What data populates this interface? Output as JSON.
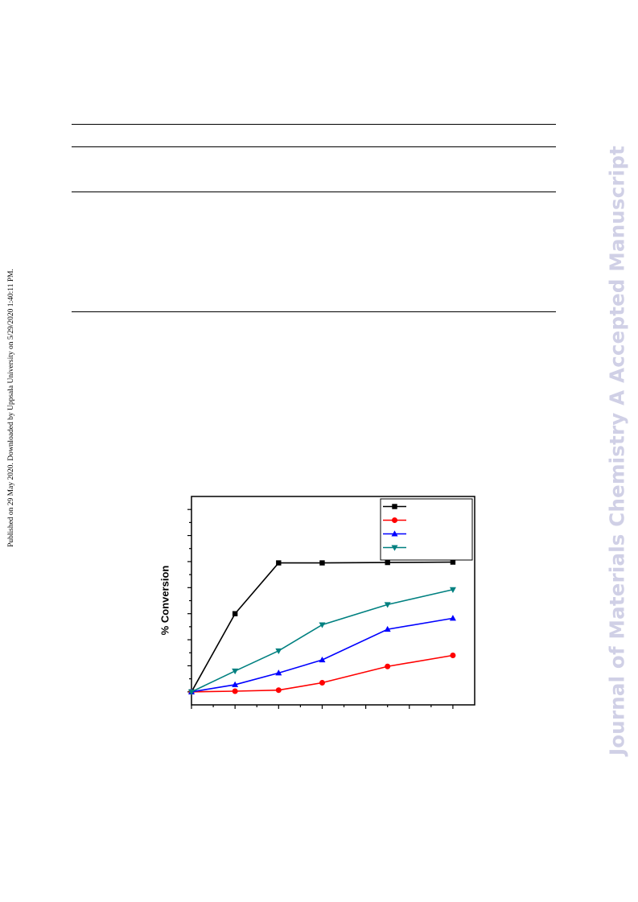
{
  "side_note": "Published on 29 May 2020. Downloaded by Uppsala University on 5/29/2020 1:40:11 PM.",
  "watermark": {
    "text": "Journal of Materials Chemistry A Accepted Manuscript",
    "color": "#d0d0e6"
  },
  "chart_data": {
    "type": "line",
    "ylabel": "% Conversion",
    "xlabel": "",
    "title": "",
    "x": [
      0,
      1,
      2,
      3,
      4.5,
      6
    ],
    "xlim": [
      0,
      6.5
    ],
    "ylim": [
      -10,
      150
    ],
    "grid": false,
    "legend_position": "top-right",
    "series": [
      {
        "name": "",
        "color": "#000000",
        "marker": "square",
        "values": [
          0,
          60,
          99,
          99,
          99.3,
          99.6
        ]
      },
      {
        "name": "",
        "color": "#ff0000",
        "marker": "circle",
        "values": [
          0,
          0.5,
          1.3,
          7,
          19.5,
          28
        ]
      },
      {
        "name": "",
        "color": "#0000ff",
        "marker": "triangle-up",
        "values": [
          0,
          5.5,
          14.5,
          24.5,
          48,
          56.5
        ]
      },
      {
        "name": "",
        "color": "#008080",
        "marker": "triangle-down",
        "values": [
          0,
          16,
          31.5,
          51.5,
          67,
          78.5
        ]
      }
    ]
  }
}
